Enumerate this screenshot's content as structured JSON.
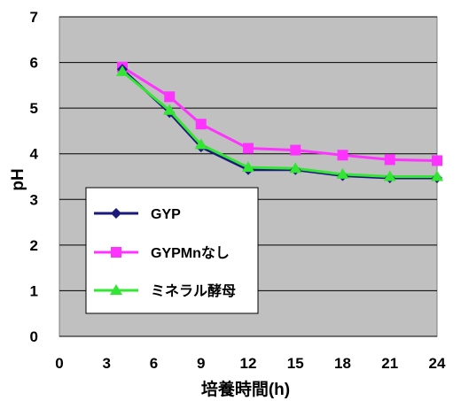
{
  "chart_data": {
    "type": "line",
    "xlabel": "培養時間(h)",
    "ylabel": "pH",
    "xlim": [
      0,
      24
    ],
    "ylim": [
      0,
      7
    ],
    "xticks": [
      0,
      3,
      6,
      9,
      12,
      15,
      18,
      21,
      24
    ],
    "yticks": [
      0,
      1,
      2,
      3,
      4,
      5,
      6,
      7
    ],
    "grid": "horizontal",
    "plot_background": "#c0c0c0",
    "legend_position": "bottom-left",
    "x": [
      4,
      7,
      9,
      12,
      15,
      18,
      21,
      24
    ],
    "series": [
      {
        "name": "GYP",
        "color": "#1a1a7a",
        "marker": "diamond",
        "values": [
          5.85,
          4.9,
          4.15,
          3.65,
          3.65,
          3.52,
          3.47,
          3.47
        ]
      },
      {
        "name": "GYPMnなし",
        "color": "#ff33ff",
        "marker": "square",
        "values": [
          5.9,
          5.25,
          4.65,
          4.12,
          4.08,
          3.97,
          3.87,
          3.85
        ]
      },
      {
        "name": "ミネラル酵母",
        "color": "#33e633",
        "marker": "triangle",
        "values": [
          5.8,
          4.95,
          4.2,
          3.7,
          3.68,
          3.55,
          3.5,
          3.5
        ]
      }
    ]
  }
}
